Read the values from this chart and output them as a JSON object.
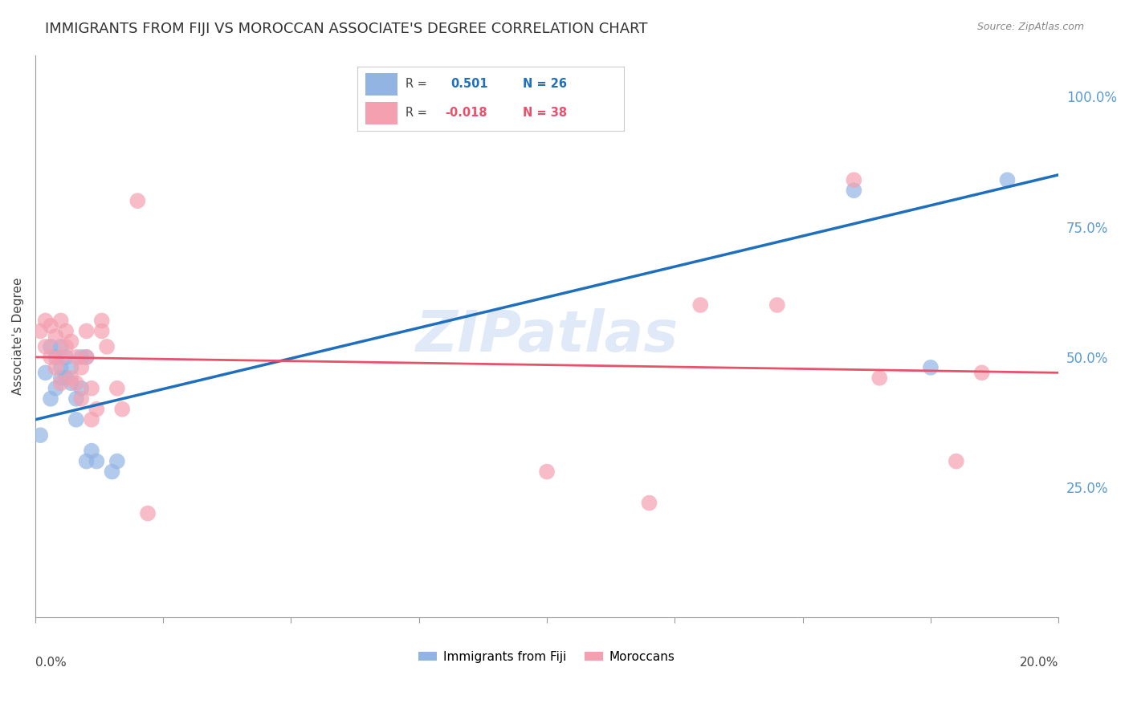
{
  "title": "IMMIGRANTS FROM FIJI VS MOROCCAN ASSOCIATE'S DEGREE CORRELATION CHART",
  "source": "Source: ZipAtlas.com",
  "ylabel": "Associate's Degree",
  "ylabel_right_ticks": [
    "100.0%",
    "75.0%",
    "50.0%",
    "25.0%"
  ],
  "ylabel_right_values": [
    1.0,
    0.75,
    0.5,
    0.25
  ],
  "watermark": "ZIPatlas",
  "legend_fiji_r": "0.501",
  "legend_fiji_n": "26",
  "legend_moroccan_r": "-0.018",
  "legend_moroccan_n": "38",
  "fiji_color": "#92b4e3",
  "moroccan_color": "#f4a0b0",
  "fiji_line_color": "#1f6fbd",
  "moroccan_line_color": "#e8516a",
  "fiji_scatter": {
    "x": [
      0.001,
      0.002,
      0.003,
      0.003,
      0.004,
      0.004,
      0.005,
      0.005,
      0.005,
      0.006,
      0.006,
      0.007,
      0.007,
      0.008,
      0.008,
      0.009,
      0.009,
      0.01,
      0.01,
      0.011,
      0.012,
      0.015,
      0.016,
      0.16,
      0.175,
      0.19
    ],
    "y": [
      0.35,
      0.47,
      0.42,
      0.52,
      0.44,
      0.5,
      0.46,
      0.48,
      0.52,
      0.46,
      0.5,
      0.45,
      0.48,
      0.38,
      0.42,
      0.44,
      0.5,
      0.3,
      0.5,
      0.32,
      0.3,
      0.28,
      0.3,
      0.82,
      0.48,
      0.84
    ]
  },
  "moroccan_scatter": {
    "x": [
      0.001,
      0.002,
      0.002,
      0.003,
      0.003,
      0.004,
      0.004,
      0.005,
      0.005,
      0.005,
      0.006,
      0.006,
      0.007,
      0.007,
      0.008,
      0.008,
      0.009,
      0.009,
      0.01,
      0.01,
      0.011,
      0.011,
      0.012,
      0.013,
      0.013,
      0.014,
      0.016,
      0.017,
      0.02,
      0.022,
      0.1,
      0.12,
      0.13,
      0.145,
      0.16,
      0.165,
      0.18,
      0.185
    ],
    "y": [
      0.55,
      0.52,
      0.57,
      0.5,
      0.56,
      0.48,
      0.54,
      0.45,
      0.5,
      0.57,
      0.52,
      0.55,
      0.46,
      0.53,
      0.45,
      0.5,
      0.42,
      0.48,
      0.55,
      0.5,
      0.38,
      0.44,
      0.4,
      0.55,
      0.57,
      0.52,
      0.44,
      0.4,
      0.8,
      0.2,
      0.28,
      0.22,
      0.6,
      0.6,
      0.84,
      0.46,
      0.3,
      0.47
    ]
  },
  "fiji_line": {
    "x0": 0.0,
    "y0": 0.38,
    "x1": 0.2,
    "y1": 0.85
  },
  "moroccan_line": {
    "x0": 0.0,
    "y0": 0.5,
    "x1": 0.2,
    "y1": 0.47
  },
  "xlim": [
    0.0,
    0.2
  ],
  "ylim": [
    0.0,
    1.08
  ],
  "background_color": "#ffffff",
  "grid_color": "#cccccc",
  "tick_color": "#5b9bd5",
  "title_fontsize": 13,
  "axis_label_fontsize": 11
}
